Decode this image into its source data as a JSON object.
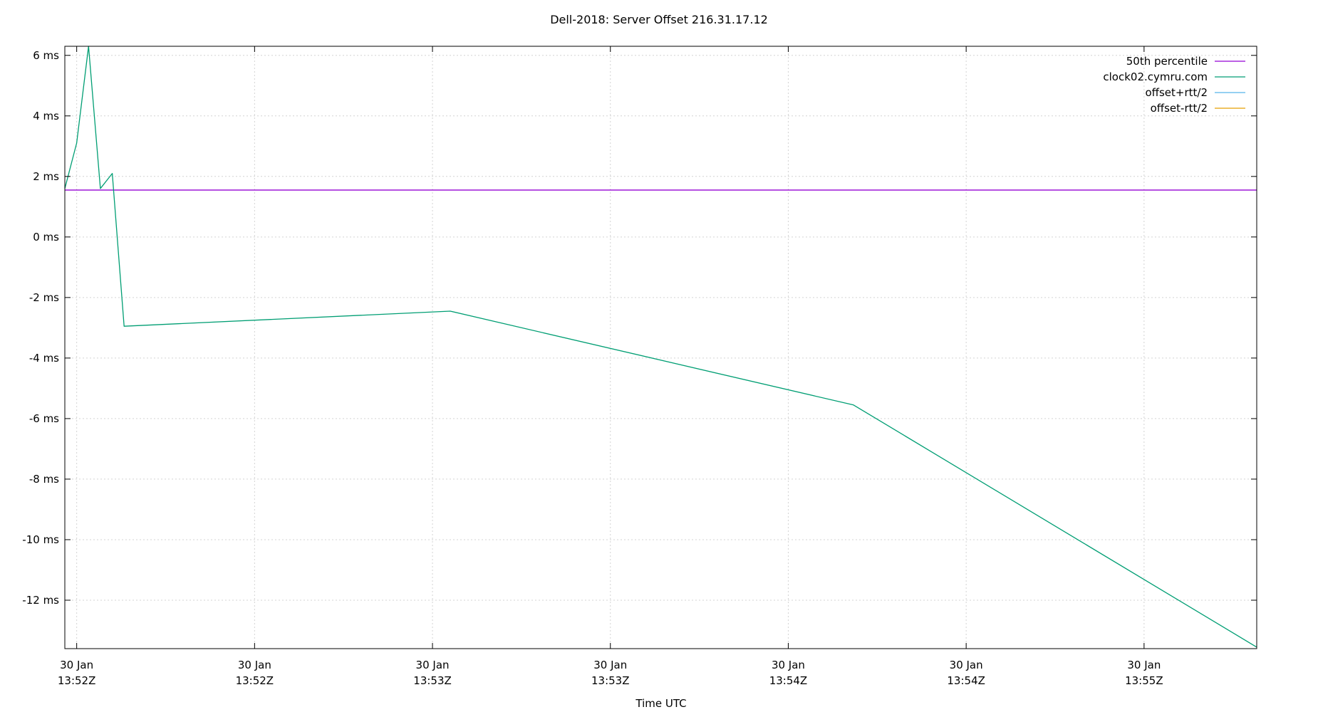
{
  "chart_data": {
    "type": "line",
    "title": "Dell-2018: Server Offset 216.31.17.12",
    "xlabel": "Time UTC",
    "ylabel": "",
    "ylim": [
      -13.6,
      6.3
    ],
    "xlim": [
      "13:51:57",
      "13:55:18"
    ],
    "x_time_unit": "seconds",
    "yticks": [
      {
        "value": 6,
        "label": "6 ms"
      },
      {
        "value": 4,
        "label": "4 ms"
      },
      {
        "value": 2,
        "label": "2 ms"
      },
      {
        "value": 0,
        "label": "0 ms"
      },
      {
        "value": -2,
        "label": "-2 ms"
      },
      {
        "value": -4,
        "label": "-4 ms"
      },
      {
        "value": -6,
        "label": "-6 ms"
      },
      {
        "value": -8,
        "label": "-8 ms"
      },
      {
        "value": -10,
        "label": "-10 ms"
      },
      {
        "value": -12,
        "label": "-12 ms"
      }
    ],
    "xticks": [
      {
        "value": "13:51:59",
        "label": [
          "30 Jan",
          "13:52Z"
        ]
      },
      {
        "value": "13:52:29",
        "label": [
          "30 Jan",
          "13:52Z"
        ]
      },
      {
        "value": "13:52:59",
        "label": [
          "30 Jan",
          "13:53Z"
        ]
      },
      {
        "value": "13:53:29",
        "label": [
          "30 Jan",
          "13:53Z"
        ]
      },
      {
        "value": "13:53:59",
        "label": [
          "30 Jan",
          "13:54Z"
        ]
      },
      {
        "value": "13:54:29",
        "label": [
          "30 Jan",
          "13:54Z"
        ]
      },
      {
        "value": "13:54:59",
        "label": [
          "30 Jan",
          "13:55Z"
        ]
      }
    ],
    "grid": true,
    "legend_position": "top-right",
    "series": [
      {
        "name": "50th percentile",
        "color": "#9400d3",
        "style": "hline",
        "y": 1.55
      },
      {
        "name": "clock02.cymru.com",
        "color": "#009e73",
        "style": "line",
        "points": [
          {
            "x": "13:51:57",
            "y": 1.6
          },
          {
            "x": "13:51:59",
            "y": 3.1
          },
          {
            "x": "13:52:01",
            "y": 6.3
          },
          {
            "x": "13:52:03",
            "y": 1.6
          },
          {
            "x": "13:52:05",
            "y": 2.1
          },
          {
            "x": "13:52:07",
            "y": -2.95
          },
          {
            "x": "13:53:02",
            "y": -2.45
          },
          {
            "x": "13:54:10",
            "y": -5.55
          },
          {
            "x": "13:55:18",
            "y": -13.55
          }
        ]
      },
      {
        "name": "offset+rtt/2",
        "color": "#56b4e9",
        "style": "line",
        "points": []
      },
      {
        "name": "offset-rtt/2",
        "color": "#e69f00",
        "style": "line",
        "points": []
      }
    ]
  }
}
